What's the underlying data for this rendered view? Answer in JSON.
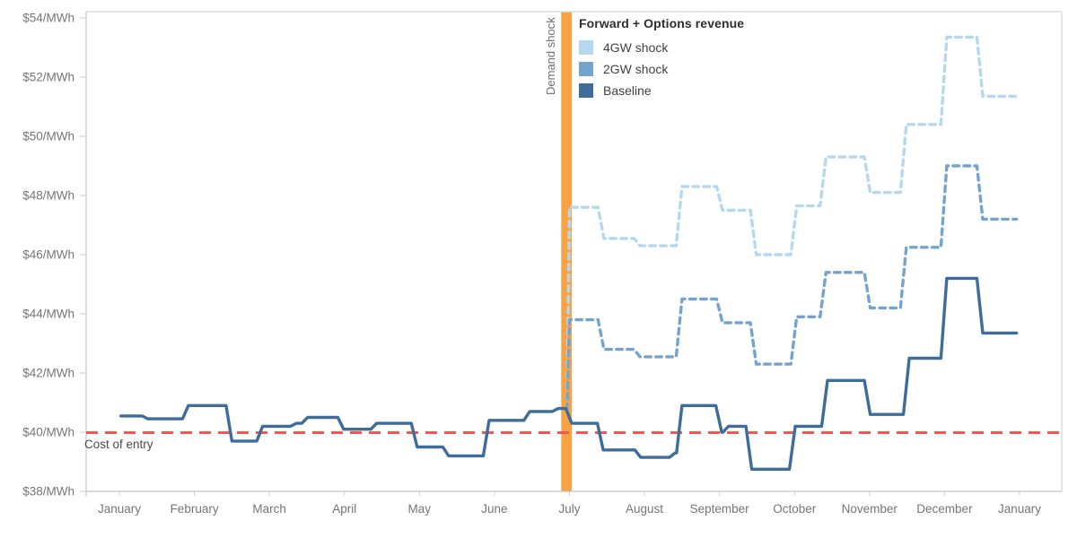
{
  "chart_data": {
    "type": "line",
    "title": "Forward + Options revenue",
    "y_axis": {
      "unit": "$/MWh",
      "min": 38,
      "max": 54.2,
      "ticks": [
        {
          "value": 38,
          "label": "$38/MWh"
        },
        {
          "value": 40,
          "label": "$40/MWh"
        },
        {
          "value": 42,
          "label": "$42/MWh"
        },
        {
          "value": 44,
          "label": "$44/MWh"
        },
        {
          "value": 46,
          "label": "$46/MWh"
        },
        {
          "value": 48,
          "label": "$48/MWh"
        },
        {
          "value": 50,
          "label": "$50/MWh"
        },
        {
          "value": 52,
          "label": "$52/MWh"
        },
        {
          "value": 54,
          "label": "$54/MWh"
        }
      ]
    },
    "x_axis": {
      "unit": "month",
      "labels": [
        "January",
        "February",
        "March",
        "April",
        "May",
        "June",
        "July",
        "August",
        "September",
        "October",
        "November",
        "December",
        "January"
      ]
    },
    "reference_line": {
      "label": "Cost of entry",
      "value": 40,
      "color": "#f4574f",
      "style": "dashed"
    },
    "shock_band": {
      "label": "Demand shock",
      "x_start_month": 5.89,
      "x_end_month": 6.03,
      "color": "#f9a243"
    },
    "series": [
      {
        "name": "4GW shock",
        "color": "#b5d8ee",
        "dashed": true,
        "end_x": 11.96,
        "points": [
          [
            5.95,
            40.8
          ],
          [
            6.0,
            47.6
          ],
          [
            6.46,
            46.55
          ],
          [
            6.94,
            46.3
          ],
          [
            7.5,
            48.3
          ],
          [
            8.04,
            47.5
          ],
          [
            8.49,
            46.0
          ],
          [
            9.03,
            47.65
          ],
          [
            9.42,
            49.3
          ],
          [
            10.01,
            48.1
          ],
          [
            10.49,
            50.4
          ],
          [
            11.03,
            53.35
          ],
          [
            11.51,
            51.35
          ]
        ]
      },
      {
        "name": "2GW shock",
        "color": "#74a4ce",
        "dashed": true,
        "end_x": 11.96,
        "points": [
          [
            5.95,
            40.8
          ],
          [
            6.0,
            43.8
          ],
          [
            6.46,
            42.8
          ],
          [
            6.94,
            42.55
          ],
          [
            7.5,
            44.5
          ],
          [
            8.04,
            43.7
          ],
          [
            8.49,
            42.3
          ],
          [
            9.03,
            43.9
          ],
          [
            9.42,
            45.4
          ],
          [
            10.01,
            44.2
          ],
          [
            10.49,
            46.25
          ],
          [
            11.03,
            49.0
          ],
          [
            11.51,
            47.2
          ]
        ]
      },
      {
        "name": "Baseline",
        "color": "#3e6d9c",
        "dashed": false,
        "end_x": 11.96,
        "points": [
          [
            0.02,
            40.55
          ],
          [
            0.38,
            40.45
          ],
          [
            0.92,
            40.9
          ],
          [
            1.5,
            39.7
          ],
          [
            1.91,
            40.2
          ],
          [
            2.36,
            40.3
          ],
          [
            2.51,
            40.5
          ],
          [
            2.99,
            40.1
          ],
          [
            3.43,
            40.3
          ],
          [
            3.97,
            39.5
          ],
          [
            4.39,
            39.2
          ],
          [
            4.93,
            40.4
          ],
          [
            5.47,
            40.7
          ],
          [
            5.85,
            40.8
          ],
          [
            6.03,
            40.3
          ],
          [
            6.45,
            39.4
          ],
          [
            6.95,
            39.15
          ],
          [
            7.41,
            39.3
          ],
          [
            7.5,
            40.9
          ],
          [
            8.03,
            40.0
          ],
          [
            8.12,
            40.2
          ],
          [
            8.43,
            38.75
          ],
          [
            9.01,
            40.2
          ],
          [
            9.44,
            41.75
          ],
          [
            10.01,
            40.6
          ],
          [
            10.53,
            42.5
          ],
          [
            11.03,
            45.2
          ],
          [
            11.51,
            43.35
          ]
        ]
      }
    ],
    "layout": {
      "grid": false,
      "legend_position": "top-right-inside"
    }
  }
}
